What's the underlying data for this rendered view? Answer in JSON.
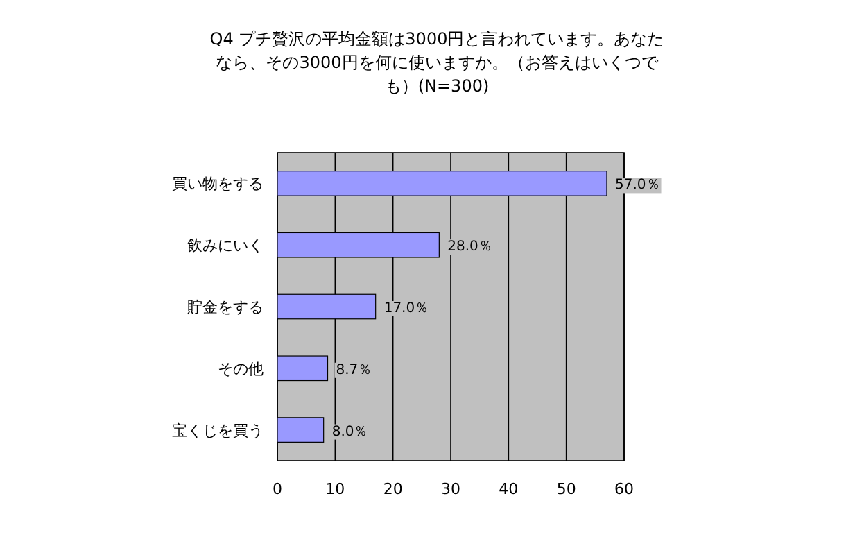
{
  "chart_data": {
    "type": "bar",
    "orientation": "horizontal",
    "title": "Q4 プチ贅沢の平均金額は3000円と言われています。あなたなら、その3000円を何に使いますか。（お答えはいくつでも）(N=300)",
    "categories": [
      "買い物をする",
      "飲みにいく",
      "貯金をする",
      "その他",
      "宝くじを買う"
    ],
    "values": [
      57.0,
      28.0,
      17.0,
      8.7,
      8.0
    ],
    "value_labels": [
      "57.0％",
      "28.0％",
      "17.0％",
      "8.7％",
      "8.0％"
    ],
    "color": "#9999ff",
    "xlim": [
      0,
      60
    ],
    "xticks": [
      0,
      10,
      20,
      30,
      40,
      50,
      60
    ],
    "grid": "x"
  }
}
